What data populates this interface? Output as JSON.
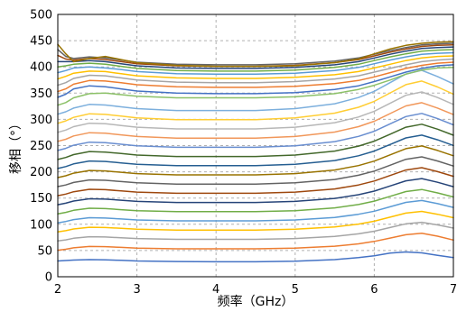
{
  "chart_data": {
    "type": "line",
    "xlabel": "频率（GHz）",
    "ylabel": "移相（°）",
    "xlim": [
      2,
      7
    ],
    "ylim": [
      0,
      500
    ],
    "xticks": [
      "2",
      "3",
      "4",
      "5",
      "6",
      "7"
    ],
    "yticks": [
      "0",
      "50",
      "100",
      "150",
      "200",
      "250",
      "300",
      "350",
      "400",
      "450",
      "500"
    ],
    "grid": true,
    "legend": "none",
    "x": [
      2.0,
      2.1,
      2.2,
      2.4,
      2.6,
      2.8,
      3.0,
      3.5,
      4.0,
      4.5,
      5.0,
      5.5,
      5.8,
      6.0,
      6.2,
      6.4,
      6.6,
      6.8,
      7.0
    ],
    "colors": [
      "#4472c4",
      "#ed7d31",
      "#a5a5a5",
      "#ffc000",
      "#5b9bd5",
      "#70ad47",
      "#264478",
      "#9e480e",
      "#636363",
      "#997300",
      "#255e91",
      "#43682b",
      "#698ed0",
      "#f1975a",
      "#b7b7b7",
      "#ffcd33",
      "#7cafdd",
      "#8cc168"
    ],
    "series": [
      {
        "values": [
          30.0,
          30.9,
          31.8,
          32.7,
          32.2,
          31.3,
          30.0,
          29.0,
          28.6,
          28.6,
          29.5,
          32.7,
          36.4,
          40.0,
          45.0,
          47.3,
          45.5,
          40.9,
          36.4
        ]
      },
      {
        "values": [
          50.5,
          52.4,
          55.1,
          57.8,
          57.4,
          56.0,
          54.6,
          53.3,
          53.3,
          53.3,
          54.6,
          58.2,
          62.8,
          67.3,
          73.7,
          80.0,
          82.8,
          77.3,
          70.0
        ]
      },
      {
        "values": [
          68.2,
          70.3,
          73.3,
          76.3,
          75.8,
          74.3,
          72.8,
          71.3,
          71.3,
          71.3,
          72.8,
          76.8,
          81.8,
          86.8,
          93.8,
          100.8,
          103.8,
          98.8,
          92.8
        ]
      },
      {
        "values": [
          85.5,
          87.8,
          91.1,
          94.4,
          93.8,
          92.2,
          90.6,
          88.9,
          88.9,
          88.9,
          90.6,
          94.9,
          100.4,
          105.9,
          113.6,
          121.3,
          124.6,
          119.1,
          112.5
        ]
      },
      {
        "values": [
          102.8,
          105.3,
          108.9,
          112.5,
          111.9,
          110.1,
          108.3,
          106.5,
          106.5,
          106.5,
          108.3,
          113.1,
          119.0,
          125.0,
          133.4,
          141.8,
          145.4,
          139.4,
          132.2
        ]
      },
      {
        "values": [
          120.0,
          122.7,
          126.6,
          130.5,
          129.9,
          127.9,
          126.0,
          124.0,
          124.0,
          124.0,
          126.0,
          131.2,
          137.7,
          144.2,
          153.3,
          162.4,
          166.3,
          159.8,
          152.0
        ]
      },
      {
        "values": [
          137.3,
          140.2,
          144.4,
          148.6,
          147.9,
          145.8,
          143.7,
          141.6,
          141.6,
          141.6,
          143.7,
          149.3,
          156.3,
          163.3,
          173.1,
          182.9,
          187.1,
          180.1,
          171.7
        ]
      },
      {
        "values": [
          154.5,
          157.6,
          162.1,
          166.6,
          165.9,
          163.6,
          161.4,
          159.1,
          159.1,
          159.1,
          161.4,
          167.4,
          174.9,
          182.4,
          192.9,
          203.4,
          207.9,
          200.4,
          191.4
        ]
      },
      {
        "values": [
          171.8,
          175.0,
          179.8,
          184.6,
          183.8,
          181.4,
          179.0,
          176.6,
          176.6,
          176.6,
          179.0,
          185.4,
          193.4,
          201.4,
          212.6,
          223.8,
          228.6,
          220.6,
          211.0
        ]
      },
      {
        "values": [
          189.0,
          192.4,
          197.5,
          202.6,
          201.7,
          199.2,
          196.6,
          194.1,
          194.1,
          194.1,
          196.6,
          203.4,
          211.9,
          220.4,
          232.3,
          244.2,
          249.3,
          240.8,
          230.6
        ]
      },
      {
        "values": [
          206.3,
          209.9,
          215.2,
          220.6,
          219.7,
          217.0,
          214.3,
          211.6,
          211.6,
          211.6,
          214.3,
          221.5,
          230.5,
          239.5,
          252.0,
          264.6,
          270.0,
          261.0,
          250.2
        ]
      },
      {
        "values": [
          223.5,
          227.3,
          232.9,
          238.6,
          237.7,
          234.8,
          232.0,
          229.2,
          229.2,
          229.2,
          232.0,
          239.5,
          249.0,
          258.4,
          271.7,
          285.0,
          290.7,
          281.2,
          269.8
        ]
      },
      {
        "values": [
          240.8,
          244.7,
          250.7,
          256.6,
          255.6,
          252.6,
          249.7,
          246.7,
          246.7,
          246.7,
          249.7,
          257.6,
          267.5,
          277.4,
          291.4,
          305.3,
          311.3,
          301.4,
          289.5
        ]
      },
      {
        "values": [
          258.0,
          262.1,
          268.4,
          274.6,
          273.6,
          270.5,
          267.4,
          264.3,
          264.3,
          264.3,
          267.4,
          275.7,
          286.0,
          296.4,
          311.0,
          325.6,
          331.8,
          321.5,
          309.1
        ]
      },
      {
        "values": [
          275.3,
          279.6,
          286.1,
          292.6,
          291.5,
          288.3,
          285.1,
          281.8,
          281.8,
          281.8,
          285.1,
          293.7,
          304.5,
          315.4,
          330.6,
          345.8,
          352.3,
          341.5,
          328.6
        ]
      },
      {
        "values": [
          292.5,
          297.0,
          303.8,
          310.7,
          309.5,
          306.1,
          302.7,
          299.3,
          299.3,
          299.3,
          302.7,
          311.8,
          323.1,
          334.4,
          350.3,
          366.2,
          373.0,
          361.7,
          348.1
        ]
      },
      {
        "values": [
          309.8,
          314.4,
          321.5,
          328.6,
          327.4,
          323.9,
          320.4,
          316.8,
          316.8,
          316.8,
          320.4,
          329.8,
          341.6,
          353.4,
          369.9,
          386.4,
          393.5,
          381.7,
          367.6
        ]
      },
      {
        "values": [
          327.0,
          332.0,
          341.0,
          349.0,
          350.0,
          347.0,
          344.0,
          341.0,
          341.0,
          341.0,
          343.0,
          349.0,
          357.0,
          365.0,
          375.0,
          386.0,
          394.0,
          398.0,
          399.0
        ]
      },
      {
        "values": [
          342.0,
          348.0,
          358.0,
          364.0,
          362.0,
          358.0,
          354.0,
          350.0,
          349.0,
          349.0,
          351.0,
          357.0,
          364.0,
          372.0,
          381.0,
          390.0,
          397.0,
          402.0,
          404.0
        ]
      },
      {
        "values": [
          353.0,
          358.0,
          367.0,
          374.0,
          373.0,
          370.0,
          366.0,
          362.0,
          361.0,
          361.0,
          363.0,
          368.0,
          374.0,
          381.0,
          389.0,
          397.0,
          403.0,
          407.0,
          409.0
        ]
      },
      {
        "values": [
          365.0,
          370.0,
          378.0,
          384.0,
          383.0,
          379.0,
          375.0,
          371.0,
          370.0,
          370.0,
          372.0,
          377.0,
          383.0,
          390.0,
          397.0,
          404.0,
          410.0,
          413.0,
          415.0
        ]
      },
      {
        "values": [
          377.0,
          382.0,
          388.0,
          392.0,
          391.0,
          387.0,
          383.0,
          379.0,
          378.0,
          378.0,
          380.0,
          385.0,
          391.0,
          398.0,
          405.0,
          412.0,
          417.0,
          420.0,
          421.0
        ]
      },
      {
        "values": [
          389.0,
          393.0,
          398.0,
          400.0,
          398.0,
          395.0,
          391.0,
          387.0,
          386.0,
          386.0,
          388.0,
          393.0,
          399.0,
          406.0,
          413.0,
          419.0,
          424.0,
          426.0,
          427.0
        ]
      },
      {
        "values": [
          400.0,
          402.0,
          405.0,
          407.0,
          405.0,
          401.0,
          397.0,
          393.0,
          392.0,
          392.0,
          394.0,
          399.0,
          405.0,
          412.0,
          419.0,
          425.0,
          430.0,
          432.0,
          433.0
        ]
      },
      {
        "values": [
          410.0,
          410.0,
          410.0,
          412.0,
          410.0,
          406.0,
          402.0,
          398.0,
          397.0,
          397.0,
          399.0,
          404.0,
          410.0,
          417.0,
          424.0,
          430.0,
          435.0,
          437.0,
          438.0
        ]
      },
      {
        "values": [
          422.0,
          415.0,
          413.0,
          416.0,
          414.0,
          410.0,
          406.0,
          402.0,
          401.0,
          401.0,
          403.0,
          408.0,
          414.0,
          421.0,
          428.0,
          434.0,
          439.0,
          441.0,
          442.0
        ]
      },
      {
        "values": [
          433.0,
          420.0,
          416.0,
          419.0,
          417.0,
          413.0,
          409.0,
          405.0,
          404.0,
          404.0,
          406.0,
          411.0,
          417.0,
          424.0,
          431.0,
          437.0,
          442.0,
          444.0,
          445.0
        ]
      },
      {
        "values": [
          443.0,
          425.0,
          410.0,
          416.0,
          420.0,
          414.0,
          408.0,
          403.0,
          401.0,
          401.0,
          402.0,
          408.0,
          415.0,
          425.0,
          434.0,
          441.0,
          445.0,
          447.0,
          448.0
        ]
      }
    ]
  }
}
